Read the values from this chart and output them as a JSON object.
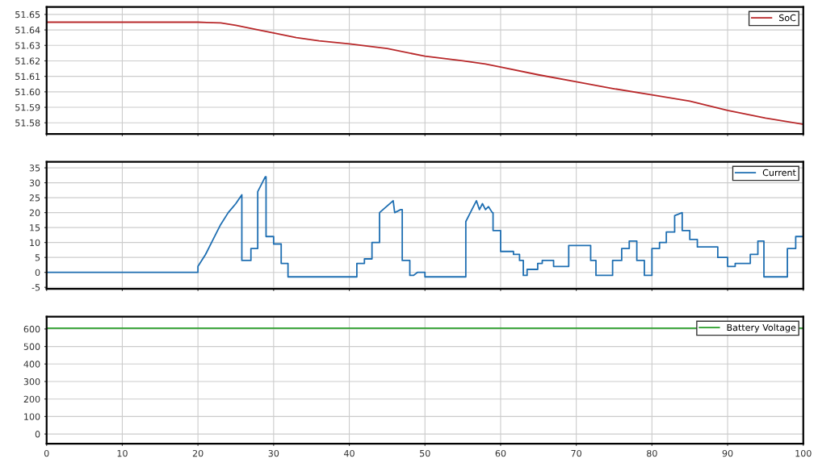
{
  "chart_data": [
    {
      "type": "line",
      "xlim": [
        0,
        100
      ],
      "xticks": [
        0,
        10,
        20,
        30,
        40,
        50,
        60,
        70,
        80,
        90,
        100
      ],
      "ylim": [
        51.5728,
        51.6548
      ],
      "yticks": [
        51.58,
        51.59,
        {
          "value": 51.6,
          "label": "51.60"
        },
        51.61,
        51.62,
        51.63,
        51.64,
        51.65
      ],
      "tick_labels": "y",
      "grid": true,
      "legend": "top right",
      "marker": "none",
      "line_style": "solid",
      "series": [
        {
          "name": "SoC",
          "color": "#b8282a",
          "x": [
            0,
            10,
            20,
            23,
            25,
            28,
            30,
            33,
            36,
            40,
            45,
            50,
            55,
            58,
            60,
            65,
            70,
            75,
            80,
            85,
            90,
            95,
            100
          ],
          "values": [
            51.645,
            51.645,
            51.645,
            51.6445,
            51.643,
            51.64,
            51.638,
            51.635,
            51.633,
            51.631,
            51.628,
            51.623,
            51.62,
            51.618,
            51.616,
            51.611,
            51.6065,
            51.602,
            51.598,
            51.594,
            51.588,
            51.583,
            51.579
          ]
        }
      ]
    },
    {
      "type": "line",
      "xlim": [
        0,
        100
      ],
      "xticks": [
        0,
        10,
        20,
        30,
        40,
        50,
        60,
        70,
        80,
        90,
        100
      ],
      "ylim": [
        -5.5,
        37
      ],
      "yticks": [
        -5,
        0,
        5,
        10,
        15,
        20,
        25,
        30,
        35
      ],
      "tick_labels": "y",
      "grid": true,
      "legend": "top right",
      "marker": "none",
      "line_style": "solid",
      "series": [
        {
          "name": "Current",
          "color": "#1f6fb2",
          "x": [
            0,
            20,
            20,
            21,
            22,
            23,
            24,
            25,
            25.8,
            25.8,
            27,
            27,
            27.9,
            27.9,
            28.9,
            29,
            29,
            30,
            30,
            31,
            31,
            31.9,
            31.9,
            41,
            41,
            42,
            42,
            43,
            43,
            44,
            44,
            45.8,
            46,
            46.8,
            47,
            47,
            48,
            48,
            48.5,
            49,
            50,
            50,
            55.4,
            55.4,
            56,
            56.8,
            57.2,
            57.6,
            58,
            58.4,
            58.9,
            59,
            59,
            60,
            60,
            61.7,
            61.7,
            62.5,
            62.5,
            63,
            63,
            63.5,
            63.5,
            64.9,
            64.9,
            65.5,
            65.5,
            67,
            67,
            69,
            69,
            71.9,
            71.9,
            72.6,
            72.6,
            74.8,
            74.8,
            76,
            76,
            77,
            77,
            78,
            78,
            79,
            79,
            80,
            80,
            81,
            81,
            81.9,
            81.9,
            83,
            83,
            84,
            84,
            85,
            85,
            86,
            86,
            88.7,
            88.7,
            90,
            90,
            91,
            91,
            93,
            93,
            94,
            94,
            94.8,
            94.8,
            97.9,
            97.9,
            99,
            99,
            100
          ],
          "values": [
            0,
            0,
            2,
            6,
            11,
            16,
            20,
            23,
            26,
            4,
            4,
            8,
            8,
            27,
            32,
            32,
            12,
            12,
            9.5,
            9.5,
            3,
            3,
            -1.5,
            -1.5,
            3,
            3,
            4.5,
            4.5,
            10,
            10,
            20,
            24,
            20,
            21,
            21,
            4,
            4,
            -1,
            -1,
            0,
            0,
            -1.5,
            -1.5,
            17,
            20,
            24,
            21,
            23,
            21,
            22,
            20,
            20,
            14,
            14,
            7,
            7,
            6,
            6,
            4,
            4,
            -1,
            -1,
            1,
            1,
            3,
            3,
            4,
            4,
            2,
            2,
            9,
            9,
            4,
            4,
            -1,
            -1,
            4,
            4,
            8,
            8,
            10.5,
            10.5,
            4,
            4,
            -1,
            -1,
            8,
            8,
            10,
            10,
            13.5,
            13.5,
            19,
            20,
            14,
            14,
            11,
            11,
            8.5,
            8.5,
            5,
            5,
            2,
            2,
            3,
            3,
            6,
            6,
            10.5,
            10.5,
            -1.5,
            -1.5,
            8,
            8,
            12,
            12
          ]
        }
      ]
    },
    {
      "type": "line",
      "xlim": [
        0,
        100
      ],
      "xticks": [
        0,
        10,
        20,
        30,
        40,
        50,
        60,
        70,
        80,
        90,
        100
      ],
      "ylim": [
        -55,
        670
      ],
      "yticks": [
        0,
        100,
        200,
        300,
        400,
        500,
        600
      ],
      "grid": true,
      "legend": "top right",
      "marker": "none",
      "line_style": "solid",
      "series": [
        {
          "name": "Battery Voltage",
          "color": "#2ca02c",
          "x": [
            0,
            25,
            50,
            75,
            100
          ],
          "values": [
            605,
            605,
            605,
            605,
            605
          ]
        }
      ]
    }
  ]
}
